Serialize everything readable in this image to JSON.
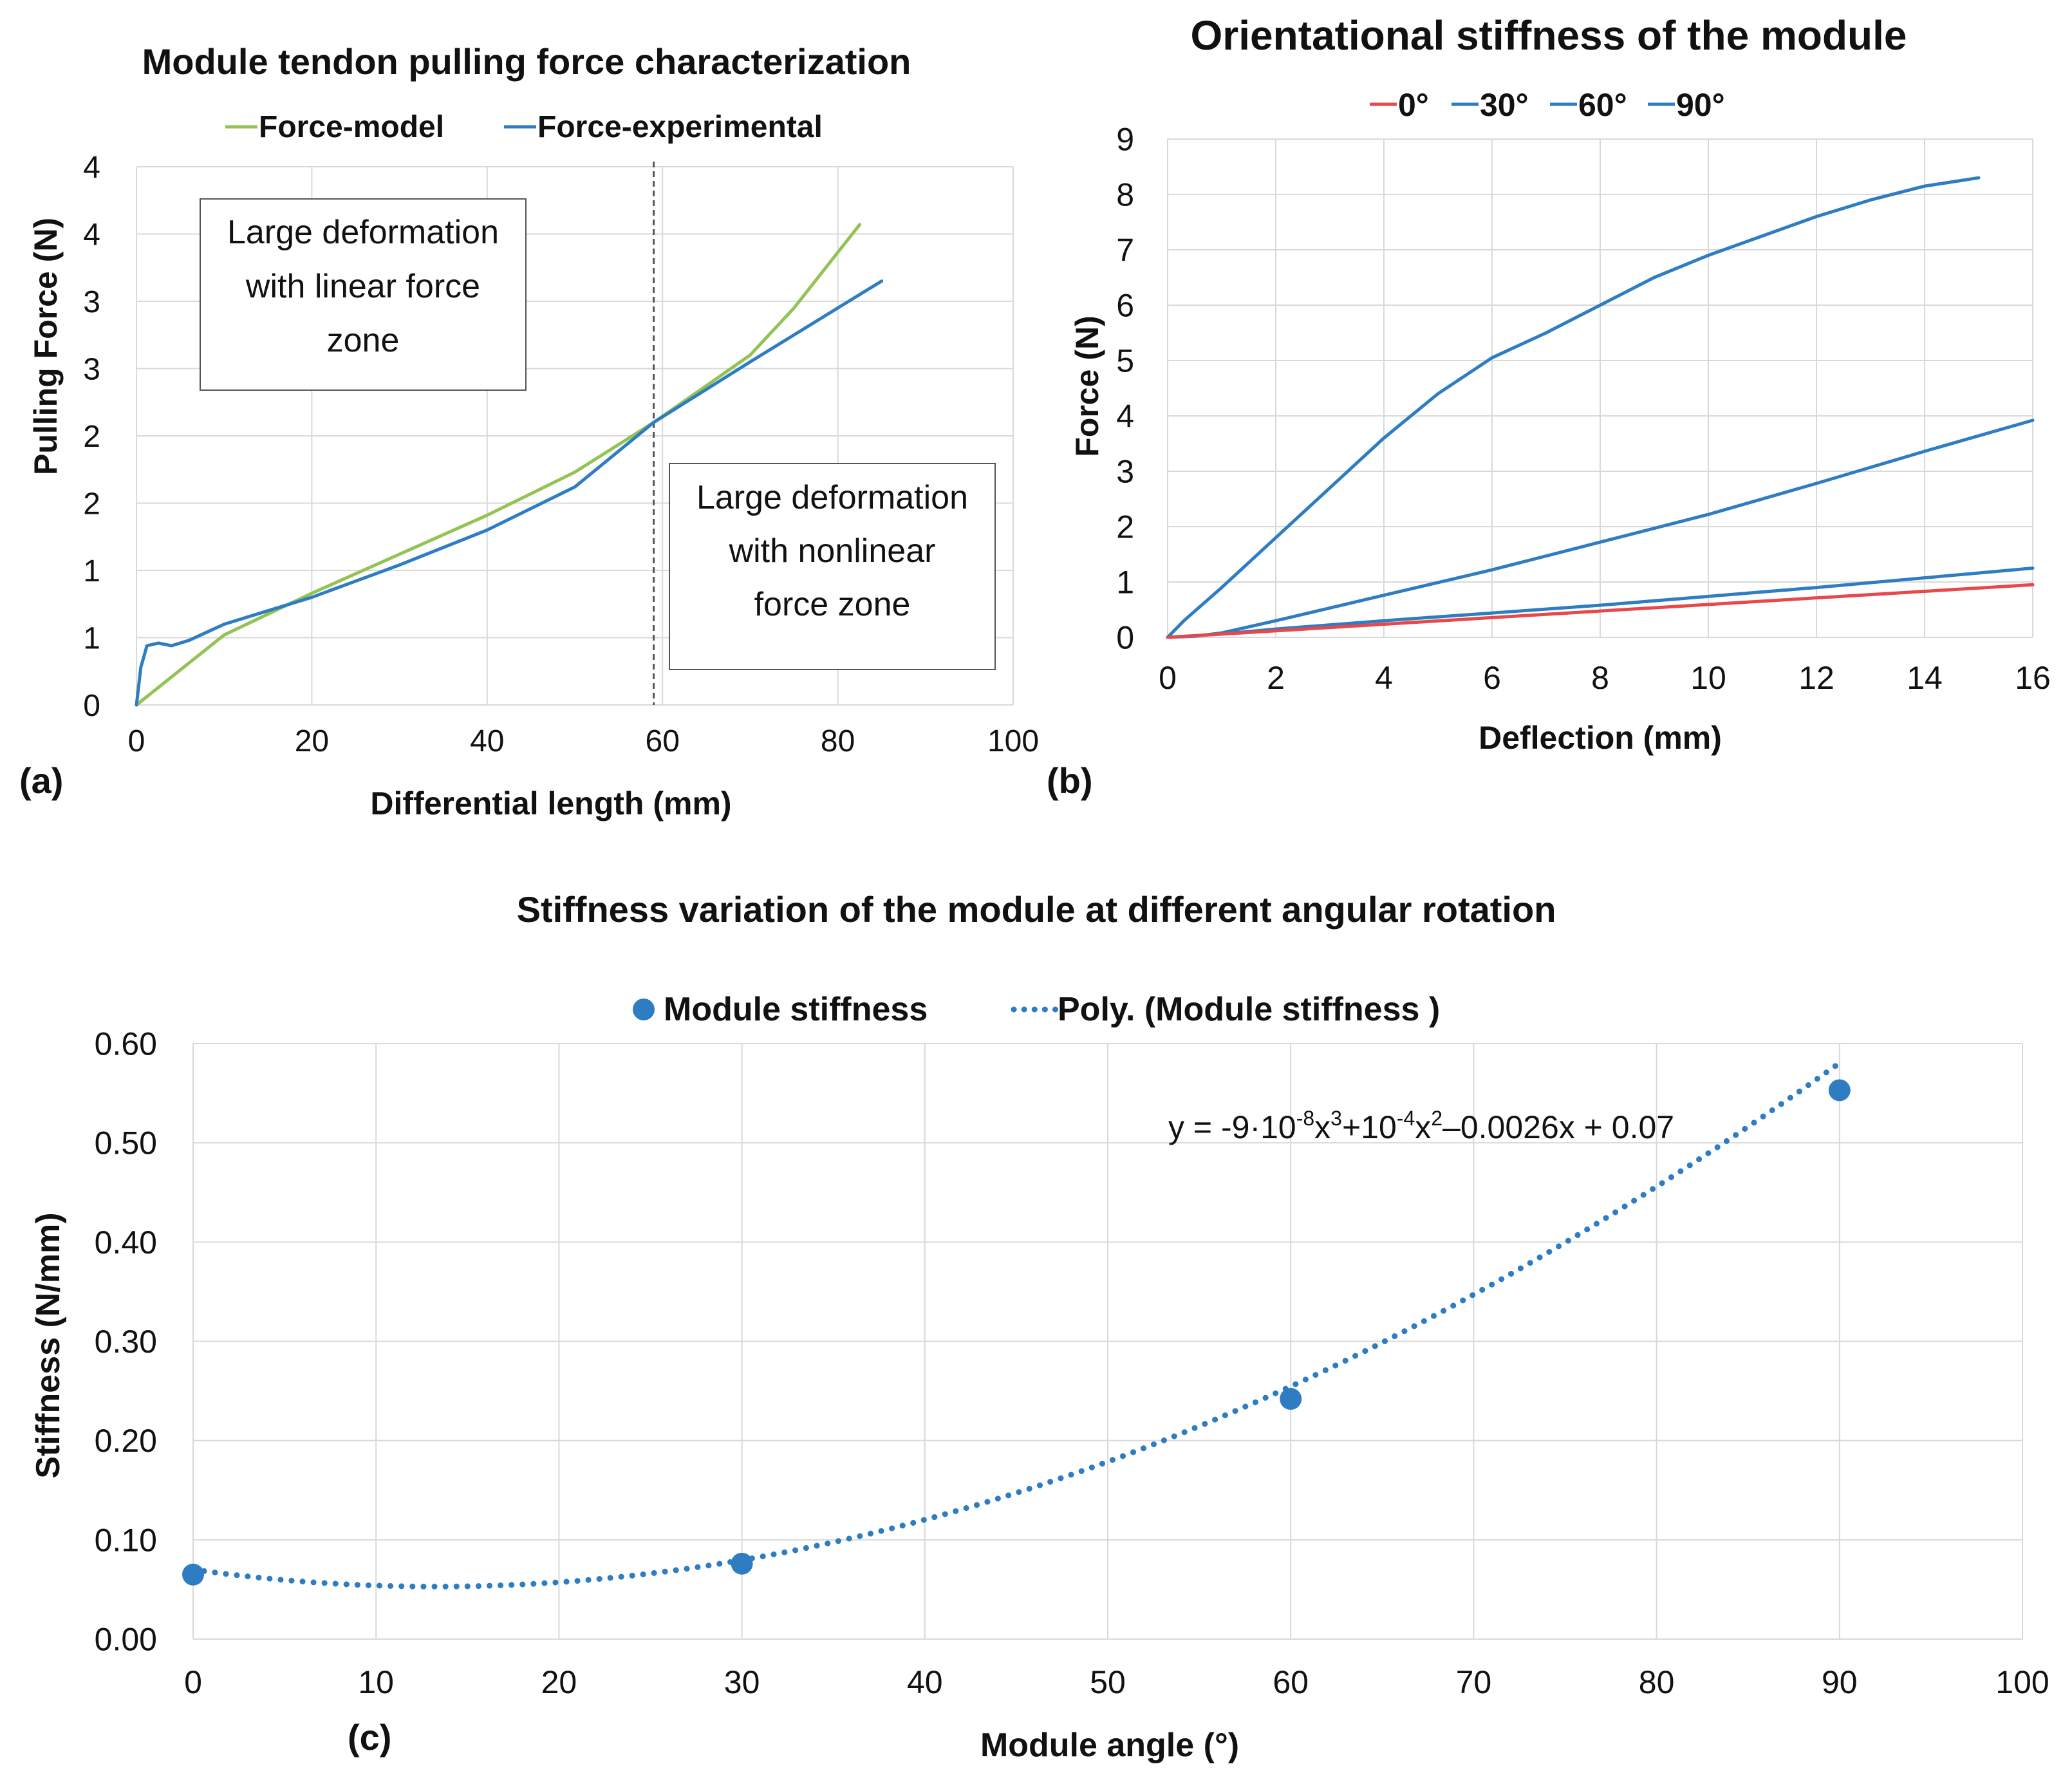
{
  "chart_data": [
    {
      "type": "line",
      "panel_label": "(a)",
      "title": "Module tendon pulling force characterization",
      "xlabel": "Differential length (mm)",
      "ylabel": "Pulling Force (N)",
      "xlim": [
        0,
        100
      ],
      "ylim": [
        0,
        4
      ],
      "x_ticks": [
        0,
        20,
        40,
        60,
        80,
        100
      ],
      "y_tick_values": [
        0,
        0.5,
        1,
        1.5,
        2,
        2.5,
        3,
        3.5,
        4
      ],
      "y_tick_labels": [
        "0",
        "1",
        "1",
        "2",
        "2",
        "3",
        "3",
        "4",
        "4"
      ],
      "legend": [
        "Force-model",
        "Force-experimental"
      ],
      "legend_position": "top",
      "series": [
        {
          "name": "Force-model",
          "color": "#92c353",
          "x": [
            0,
            10,
            20,
            30,
            40,
            50,
            59,
            70,
            75,
            82.5
          ],
          "y": [
            0.0,
            0.52,
            0.83,
            1.12,
            1.41,
            1.73,
            2.1,
            2.6,
            2.95,
            3.57
          ]
        },
        {
          "name": "Force-experimental",
          "color": "#2e7dc2",
          "x": [
            0,
            0.5,
            1.2,
            2.5,
            4,
            6,
            10,
            20,
            30,
            40,
            50,
            59,
            70,
            80,
            85
          ],
          "y": [
            0.0,
            0.28,
            0.44,
            0.46,
            0.44,
            0.48,
            0.6,
            0.8,
            1.04,
            1.3,
            1.62,
            2.1,
            2.55,
            2.95,
            3.15
          ]
        }
      ],
      "annotations": {
        "vertical_line_x": 59,
        "box1": [
          "Large deformation",
          "with linear force",
          "zone"
        ],
        "box2": [
          "Large deformation",
          "with nonlinear",
          "force zone"
        ]
      }
    },
    {
      "type": "line",
      "panel_label": "(b)",
      "title": "Orientational stiffness of the module",
      "xlabel": "Deflection (mm)",
      "ylabel": "Force (N)",
      "xlim": [
        0,
        16
      ],
      "ylim": [
        0,
        9
      ],
      "x_ticks": [
        0,
        2,
        4,
        6,
        8,
        10,
        12,
        14,
        16
      ],
      "y_ticks": [
        0,
        1,
        2,
        3,
        4,
        5,
        6,
        7,
        8,
        9
      ],
      "legend": [
        "0°",
        "30°",
        "60°",
        "90°"
      ],
      "legend_position": "top",
      "series": [
        {
          "name": "0°",
          "color": "#e8484a",
          "x": [
            0,
            16
          ],
          "y": [
            0,
            0.95
          ]
        },
        {
          "name": "30°",
          "color": "#2e7dc2",
          "x": [
            0,
            1,
            2,
            4,
            8,
            12,
            16
          ],
          "y": [
            0,
            0.06,
            0.15,
            0.3,
            0.58,
            0.9,
            1.25
          ]
        },
        {
          "name": "60°",
          "color": "#2e7dc2",
          "x": [
            0,
            0.5,
            1,
            2,
            4,
            6,
            8,
            10,
            12,
            14,
            16
          ],
          "y": [
            0,
            0.02,
            0.08,
            0.3,
            0.76,
            1.22,
            1.72,
            2.22,
            2.78,
            3.36,
            3.92
          ]
        },
        {
          "name": "90°",
          "color": "#2e7dc2",
          "x": [
            0,
            0.3,
            1,
            2,
            3,
            4,
            5,
            6,
            7,
            8,
            9,
            10,
            11,
            12,
            13,
            14,
            15
          ],
          "y": [
            0,
            0.3,
            0.9,
            1.8,
            2.7,
            3.6,
            4.4,
            5.05,
            5.5,
            6.0,
            6.5,
            6.9,
            7.25,
            7.6,
            7.9,
            8.15,
            8.3
          ]
        }
      ]
    },
    {
      "type": "scatter",
      "panel_label": "(c)",
      "title": "Stiffness variation of the module at different angular rotation",
      "xlabel": "Module angle (°)",
      "ylabel": "Stiffness (N/mm)",
      "xlim": [
        0,
        100
      ],
      "ylim": [
        0,
        0.6
      ],
      "x_ticks": [
        0,
        10,
        20,
        30,
        40,
        50,
        60,
        70,
        80,
        90,
        100
      ],
      "y_ticks": [
        0,
        0.1,
        0.2,
        0.3,
        0.4,
        0.5,
        0.6
      ],
      "y_tick_labels": [
        "0.00",
        "0.10",
        "0.20",
        "0.30",
        "0.40",
        "0.50",
        "0.60"
      ],
      "legend": [
        "Module stiffness",
        "Poly. (Module stiffness )"
      ],
      "legend_position": "top",
      "series": [
        {
          "name": "Module stiffness",
          "color": "#2e7dc2",
          "x": [
            0,
            30,
            60,
            90
          ],
          "y": [
            0.065,
            0.076,
            0.242,
            0.553
          ]
        }
      ],
      "trendline": {
        "name": "Poly. (Module stiffness )",
        "equation_text": "y = -9·10-8x3+10-4x2–0.0026x + 0.07",
        "coefficients": {
          "a3": -9e-08,
          "a2": 0.0001,
          "a1": -0.0026,
          "a0": 0.07
        },
        "x_range": [
          0,
          90
        ]
      }
    }
  ],
  "equation": {
    "p1": "y = -9·10",
    "e1": "-8",
    "p2": "x",
    "e2": "3",
    "p3": "+10",
    "e3": "-4",
    "p4": "x",
    "e4": "2",
    "p5": "–0.0026x + 0.07"
  }
}
